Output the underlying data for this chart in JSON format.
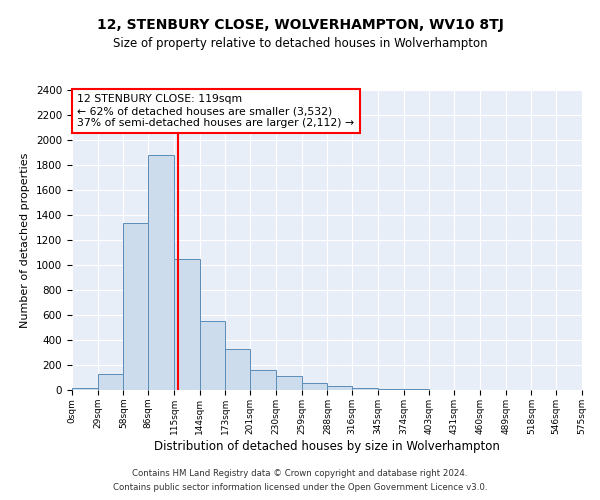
{
  "title": "12, STENBURY CLOSE, WOLVERHAMPTON, WV10 8TJ",
  "subtitle": "Size of property relative to detached houses in Wolverhampton",
  "xlabel": "Distribution of detached houses by size in Wolverhampton",
  "ylabel": "Number of detached properties",
  "footnote1": "Contains HM Land Registry data © Crown copyright and database right 2024.",
  "footnote2": "Contains public sector information licensed under the Open Government Licence v3.0.",
  "annotation_line1": "12 STENBURY CLOSE: 119sqm",
  "annotation_line2": "← 62% of detached houses are smaller (3,532)",
  "annotation_line3": "37% of semi-detached houses are larger (2,112) →",
  "bar_values": [
    20,
    130,
    1340,
    1880,
    1045,
    555,
    325,
    160,
    110,
    60,
    30,
    15,
    8,
    5,
    3,
    2,
    1,
    1,
    1,
    0
  ],
  "bin_edges": [
    0,
    29,
    58,
    86,
    115,
    144,
    173,
    201,
    230,
    259,
    288,
    316,
    345,
    374,
    403,
    431,
    460,
    489,
    518,
    546,
    575
  ],
  "tick_labels": [
    "0sqm",
    "29sqm",
    "58sqm",
    "86sqm",
    "115sqm",
    "144sqm",
    "173sqm",
    "201sqm",
    "230sqm",
    "259sqm",
    "288sqm",
    "316sqm",
    "345sqm",
    "374sqm",
    "403sqm",
    "431sqm",
    "460sqm",
    "489sqm",
    "518sqm",
    "546sqm",
    "575sqm"
  ],
  "property_size": 119,
  "ylim": [
    0,
    2400
  ],
  "bar_color": "#ccdcec",
  "bar_edge_color": "#5b8db8",
  "vline_color": "red",
  "bg_color": "#e8eef8",
  "annotation_box_edge": "red",
  "annotation_box_face": "white"
}
